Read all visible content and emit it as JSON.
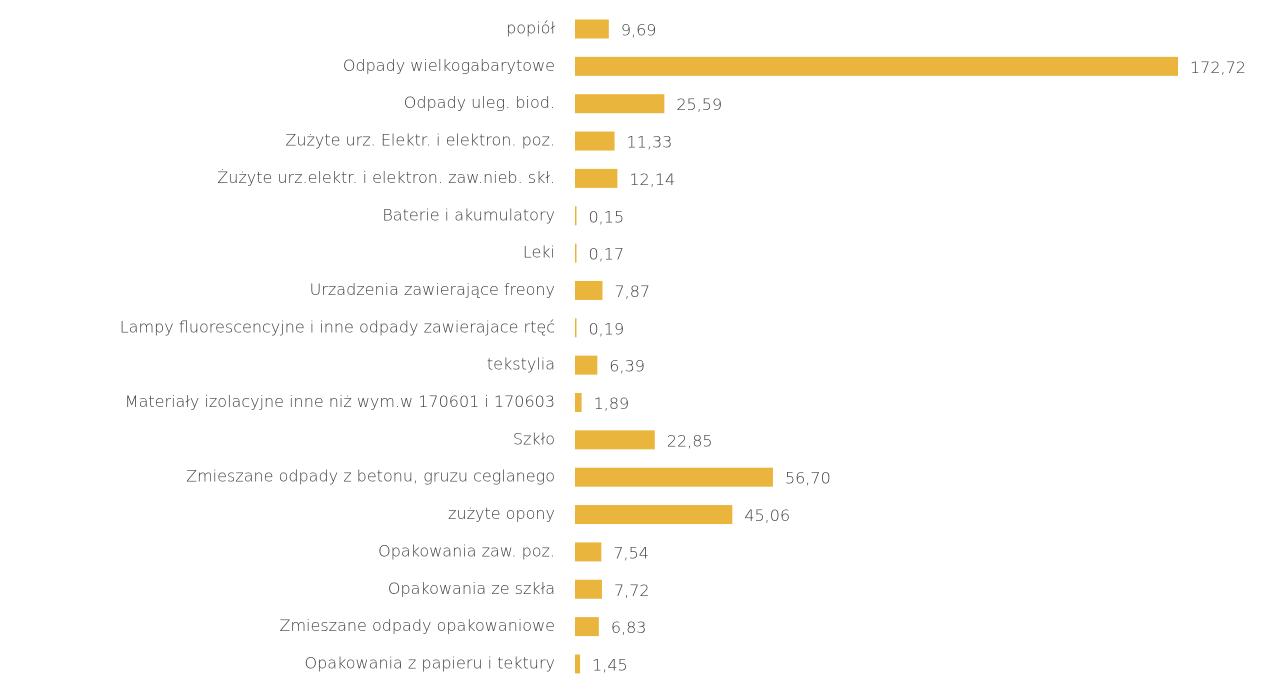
{
  "chart_data": {
    "type": "bar",
    "orientation": "horizontal",
    "color": "#e9b53c",
    "categories": [
      "popiół",
      "Odpady wielkogabarytowe",
      "Odpady uleg. biod.",
      "Zużyte urz. Elektr. i elektron. poz.",
      "Żużyte urz.elektr. i elektron. zaw.nieb. skł.",
      "Baterie i akumulatory",
      "Leki",
      "Urzadzenia zawierające freony",
      "Lampy fluorescencyjne i inne odpady zawierajace rtęć",
      "tekstylia",
      "Materiały izolacyjne inne niż wym.w 170601 i 170603",
      "Szkło",
      "Zmieszane odpady z betonu, gruzu ceglanego",
      "zużyte opony",
      "Opakowania zaw. poz.",
      "Opakowania ze szkła",
      "Zmieszane odpady opakowaniowe",
      "Opakowania z papieru i tektury"
    ],
    "values": [
      9.69,
      172.72,
      25.59,
      11.33,
      12.14,
      0.15,
      0.17,
      7.87,
      0.19,
      6.39,
      1.89,
      22.85,
      56.7,
      45.06,
      7.54,
      7.72,
      6.83,
      1.45
    ],
    "value_labels": [
      "9,69",
      "172,72",
      "25,59",
      "11,33",
      "12,14",
      "0,15",
      "0,17",
      "7,87",
      "0,19",
      "6,39",
      "1,89",
      "22,85",
      "56,70",
      "45,06",
      "7,54",
      "7,72",
      "6,83",
      "1,45"
    ]
  }
}
